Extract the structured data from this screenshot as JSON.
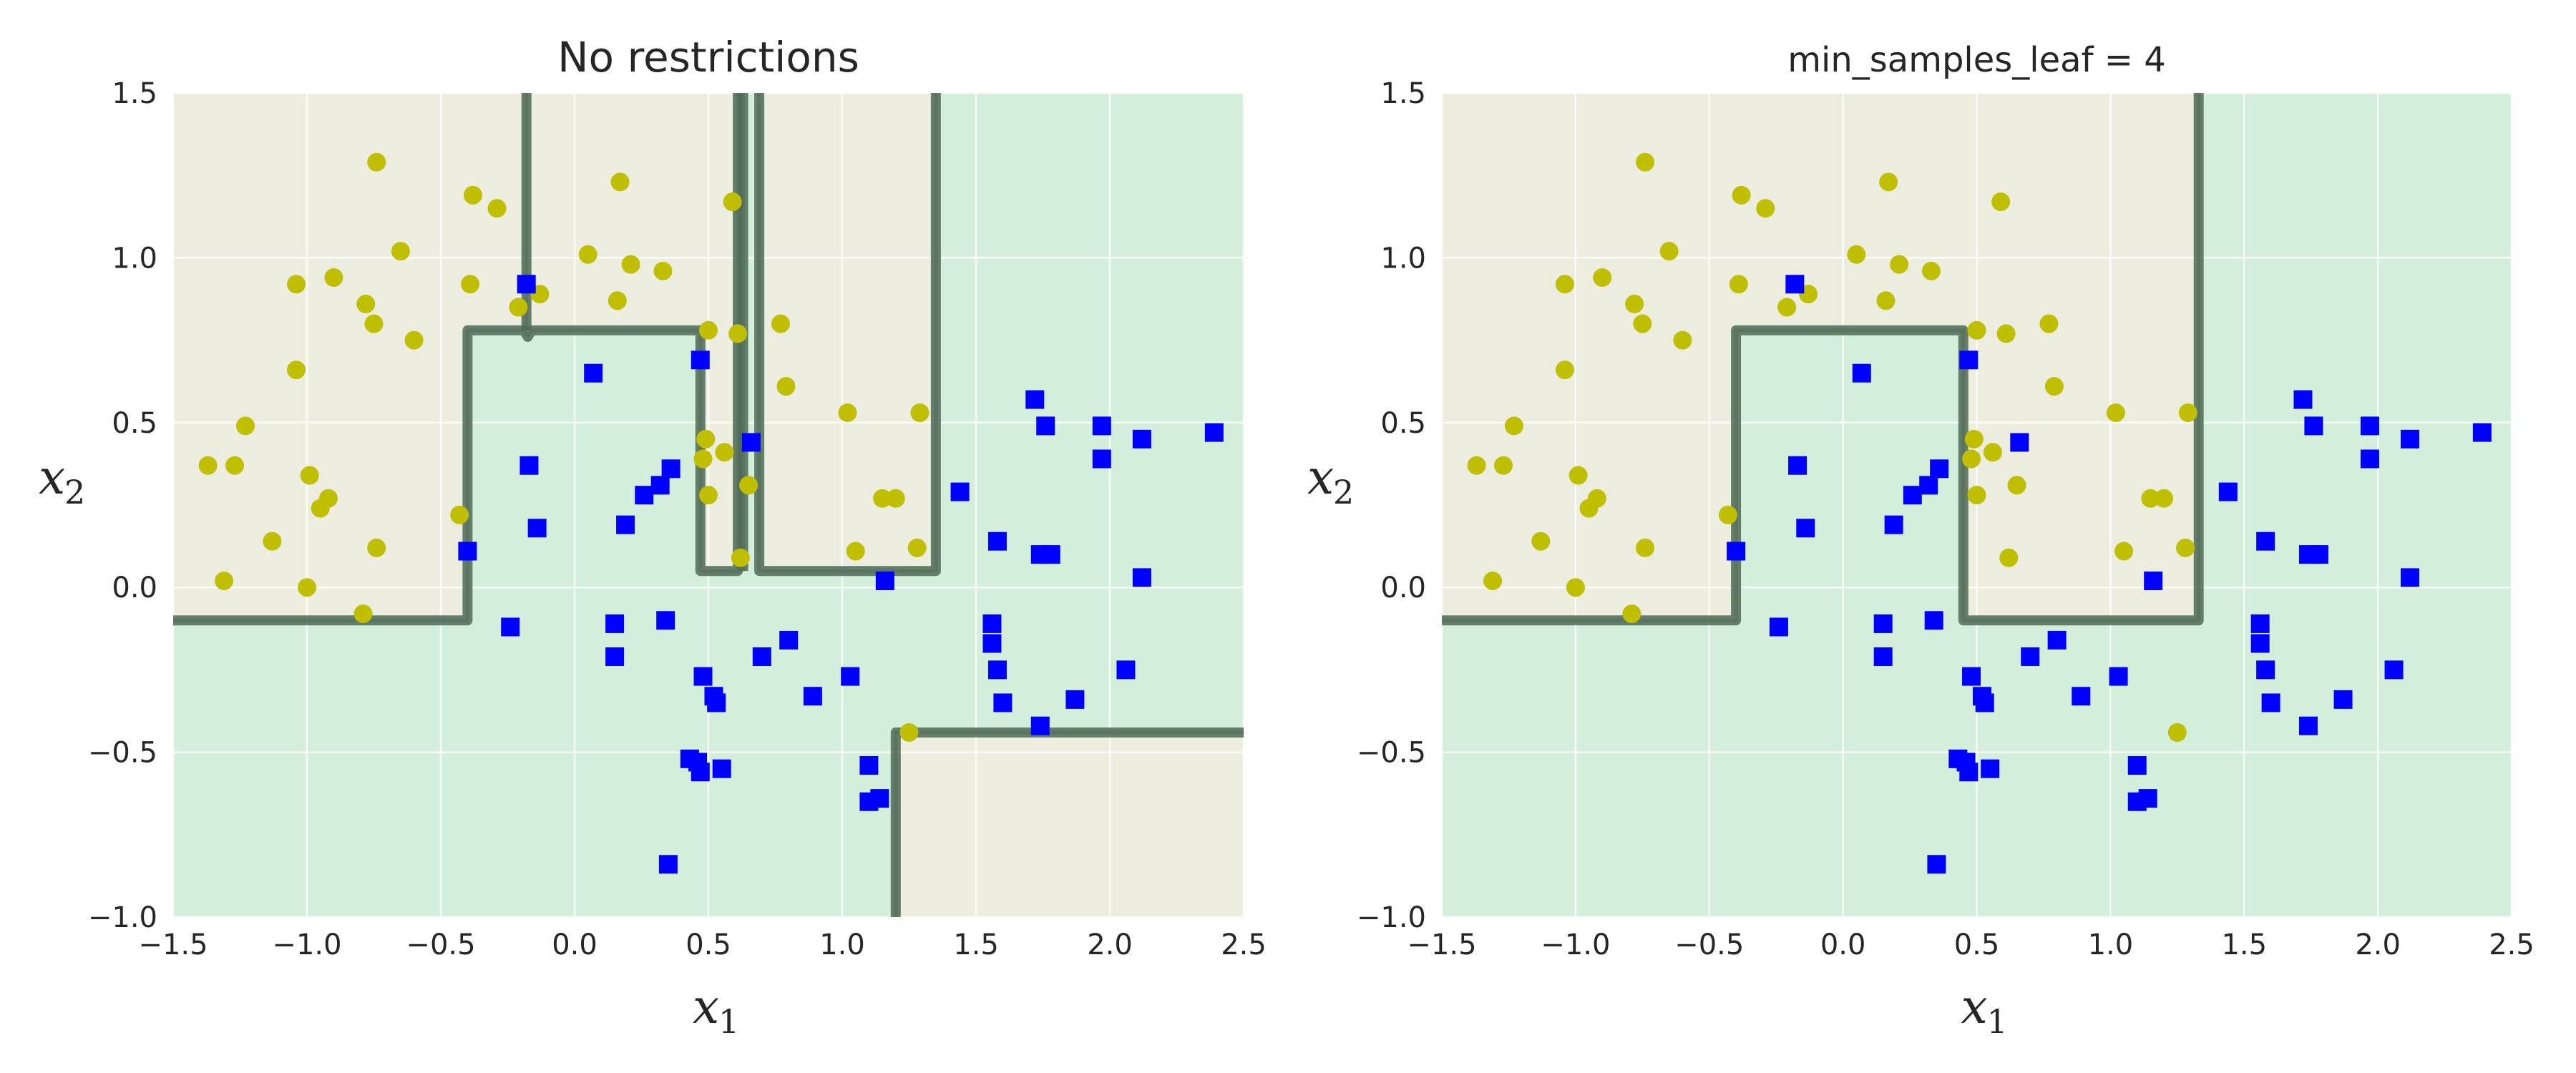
{
  "chart_data": [
    {
      "type": "scatter",
      "title": "No restrictions",
      "xlabel": "x",
      "xlabel_sub": "1",
      "ylabel": "x",
      "ylabel_sub": "2",
      "xlim": [
        -1.5,
        2.5
      ],
      "ylim": [
        -1.0,
        1.5
      ],
      "xticks": [
        -1.5,
        -1.0,
        -0.5,
        0.0,
        0.5,
        1.0,
        1.5,
        2.0,
        2.5
      ],
      "yticks": [
        -1.0,
        -0.5,
        0.0,
        0.5,
        1.0,
        1.5
      ],
      "grid": true,
      "class_colors": {
        "class_0": "#bfbf00",
        "class_1": "#0000ff"
      },
      "region_colors": {
        "class_0": "#ecedde",
        "class_1": "#d3efdc"
      },
      "boundary_color": "#4c6b55",
      "regions_class0": [
        [
          -1.5,
          -0.1,
          -0.4,
          1.5
        ],
        [
          -0.4,
          0.78,
          -0.18,
          1.5
        ],
        [
          -0.18,
          0.78,
          0.47,
          1.5
        ],
        [
          0.47,
          0.05,
          0.61,
          1.5
        ],
        [
          0.69,
          0.05,
          1.35,
          1.5
        ],
        [
          1.2,
          -1.0,
          2.5,
          -0.44
        ]
      ],
      "boundary_path": [
        [
          [
            -1.5,
            -0.1
          ],
          [
            -0.4,
            -0.1
          ],
          [
            -0.4,
            0.78
          ],
          [
            -0.19,
            0.78
          ],
          [
            -0.175,
            0.76
          ],
          [
            -0.16,
            0.78
          ],
          [
            0.47,
            0.78
          ],
          [
            0.47,
            0.05
          ],
          [
            0.61,
            0.05
          ],
          [
            0.61,
            1.5
          ]
        ],
        [
          [
            -0.18,
            1.5
          ],
          [
            -0.18,
            0.78
          ]
        ],
        [
          [
            0.63,
            1.5
          ],
          [
            0.63,
            0.05
          ]
        ],
        [
          [
            0.69,
            1.5
          ],
          [
            0.69,
            0.05
          ],
          [
            1.35,
            0.05
          ],
          [
            1.35,
            1.5
          ]
        ],
        [
          [
            1.2,
            -1.0
          ],
          [
            1.2,
            -0.44
          ],
          [
            2.5,
            -0.44
          ]
        ]
      ]
    },
    {
      "type": "scatter",
      "title": "min_samples_leaf = 4",
      "xlabel": "x",
      "xlabel_sub": "1",
      "ylabel": "x",
      "ylabel_sub": "2",
      "xlim": [
        -1.5,
        2.5
      ],
      "ylim": [
        -1.0,
        1.5
      ],
      "xticks": [
        -1.5,
        -1.0,
        -0.5,
        0.0,
        0.5,
        1.0,
        1.5,
        2.0,
        2.5
      ],
      "yticks": [
        -1.0,
        -0.5,
        0.0,
        0.5,
        1.0,
        1.5
      ],
      "grid": true,
      "class_colors": {
        "class_0": "#bfbf00",
        "class_1": "#0000ff"
      },
      "region_colors": {
        "class_0": "#ecedde",
        "class_1": "#d3efdc"
      },
      "boundary_color": "#4c6b55",
      "regions_class0": [
        [
          -1.5,
          -0.1,
          -0.4,
          1.5
        ],
        [
          -0.4,
          0.78,
          0.45,
          1.5
        ],
        [
          0.45,
          -0.1,
          1.33,
          1.5
        ]
      ],
      "boundary_path": [
        [
          [
            -1.5,
            -0.1
          ],
          [
            -0.4,
            -0.1
          ],
          [
            -0.4,
            0.78
          ],
          [
            0.45,
            0.78
          ],
          [
            0.45,
            -0.1
          ],
          [
            1.33,
            -0.1
          ],
          [
            1.33,
            1.5
          ]
        ]
      ]
    }
  ],
  "points_class0": [
    [
      -1.37,
      0.37
    ],
    [
      -1.31,
      0.02
    ],
    [
      -1.27,
      0.37
    ],
    [
      -1.23,
      0.49
    ],
    [
      -1.13,
      0.14
    ],
    [
      -1.04,
      0.92
    ],
    [
      -1.04,
      0.66
    ],
    [
      -1.0,
      0.0
    ],
    [
      -0.99,
      0.34
    ],
    [
      -0.95,
      0.24
    ],
    [
      -0.92,
      0.27
    ],
    [
      -0.9,
      0.94
    ],
    [
      -0.79,
      -0.08
    ],
    [
      -0.78,
      0.86
    ],
    [
      -0.75,
      0.8
    ],
    [
      -0.74,
      1.29
    ],
    [
      -0.74,
      0.12
    ],
    [
      -0.65,
      1.02
    ],
    [
      -0.6,
      0.75
    ],
    [
      -0.43,
      0.22
    ],
    [
      -0.39,
      0.92
    ],
    [
      -0.38,
      1.19
    ],
    [
      -0.29,
      1.15
    ],
    [
      -0.21,
      0.85
    ],
    [
      -0.13,
      0.89
    ],
    [
      0.05,
      1.01
    ],
    [
      0.16,
      0.87
    ],
    [
      0.17,
      1.23
    ],
    [
      0.21,
      0.98
    ],
    [
      0.33,
      0.96
    ],
    [
      0.48,
      0.39
    ],
    [
      0.49,
      0.45
    ],
    [
      0.5,
      0.28
    ],
    [
      0.5,
      0.78
    ],
    [
      0.56,
      0.41
    ],
    [
      0.59,
      1.17
    ],
    [
      0.61,
      0.77
    ],
    [
      0.62,
      0.09
    ],
    [
      0.65,
      0.31
    ],
    [
      0.77,
      0.8
    ],
    [
      0.79,
      0.61
    ],
    [
      1.02,
      0.53
    ],
    [
      1.05,
      0.11
    ],
    [
      1.15,
      0.27
    ],
    [
      1.2,
      0.27
    ],
    [
      1.25,
      -0.44
    ],
    [
      1.28,
      0.12
    ],
    [
      1.29,
      0.53
    ]
  ],
  "points_class1": [
    [
      -0.4,
      0.11
    ],
    [
      -0.24,
      -0.12
    ],
    [
      -0.18,
      0.92
    ],
    [
      -0.17,
      0.37
    ],
    [
      -0.14,
      0.18
    ],
    [
      0.07,
      0.65
    ],
    [
      0.15,
      -0.11
    ],
    [
      0.15,
      -0.21
    ],
    [
      0.19,
      0.19
    ],
    [
      0.26,
      0.28
    ],
    [
      0.32,
      0.31
    ],
    [
      0.34,
      -0.1
    ],
    [
      0.36,
      0.36
    ],
    [
      0.35,
      -0.84
    ],
    [
      0.43,
      -0.52
    ],
    [
      0.46,
      -0.53
    ],
    [
      0.47,
      0.69
    ],
    [
      0.47,
      -0.56
    ],
    [
      0.48,
      -0.27
    ],
    [
      0.52,
      -0.33
    ],
    [
      0.53,
      -0.35
    ],
    [
      0.55,
      -0.55
    ],
    [
      0.66,
      0.44
    ],
    [
      0.7,
      -0.21
    ],
    [
      0.8,
      -0.16
    ],
    [
      0.89,
      -0.33
    ],
    [
      1.03,
      -0.27
    ],
    [
      1.1,
      -0.54
    ],
    [
      1.1,
      -0.65
    ],
    [
      1.14,
      -0.64
    ],
    [
      1.16,
      0.02
    ],
    [
      1.44,
      0.29
    ],
    [
      1.56,
      -0.11
    ],
    [
      1.56,
      -0.17
    ],
    [
      1.58,
      0.14
    ],
    [
      1.58,
      -0.25
    ],
    [
      1.6,
      -0.35
    ],
    [
      1.72,
      0.57
    ],
    [
      1.74,
      -0.42
    ],
    [
      1.74,
      0.1
    ],
    [
      1.78,
      0.1
    ],
    [
      1.76,
      0.49
    ],
    [
      1.87,
      -0.34
    ],
    [
      1.97,
      0.49
    ],
    [
      1.97,
      0.39
    ],
    [
      2.06,
      -0.25
    ],
    [
      2.12,
      0.45
    ],
    [
      2.12,
      0.03
    ],
    [
      2.39,
      0.47
    ]
  ]
}
